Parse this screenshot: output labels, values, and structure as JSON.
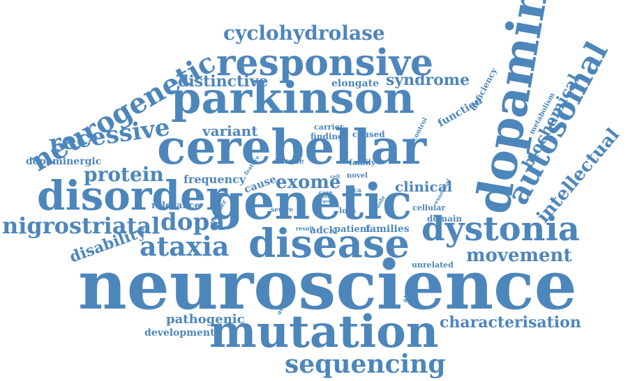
{
  "color": "#4d86bb",
  "words": [
    "neuroscience",
    "mutation",
    "sequencing",
    "characterisation",
    "pathogenic",
    "development",
    "atrophy",
    "absence",
    "unrelated",
    "movement",
    "disability",
    "ataxia",
    "disease",
    "dystonia",
    "nigrostriatal",
    "dopa",
    "relevance",
    "number",
    "result",
    "adck",
    "patient",
    "families",
    "domain",
    "cellular",
    "severe",
    "loss",
    "whole",
    "essential",
    "disorder",
    "genetic",
    "clinical",
    "intellectual",
    "protein",
    "frequency",
    "cause",
    "exome",
    "case",
    "cell",
    "arca",
    "says",
    "gene",
    "novel",
    "dopaminergic",
    "feature",
    "encode",
    "family",
    "recessive",
    "cerebellar",
    "autosomal",
    "variant",
    "carrier",
    "finding",
    "caused",
    "control",
    "function",
    "metabolism",
    "biochemical",
    "neurogenetic",
    "parkinson",
    "distinctive",
    "elongate",
    "syndrome",
    "deficiency",
    "cyclohydrolase",
    "responsive",
    "dopamine"
  ]
}
